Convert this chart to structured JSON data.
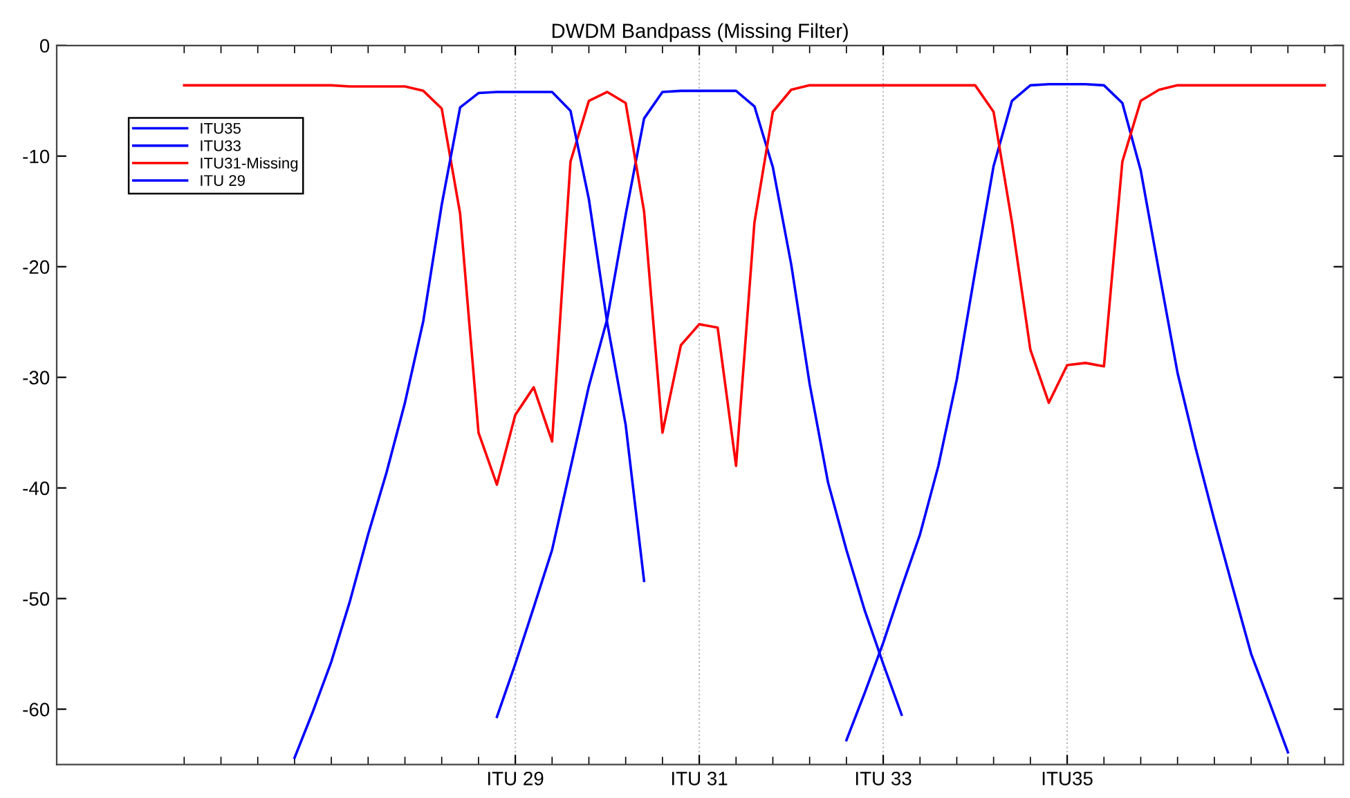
{
  "chart_data": {
    "type": "line",
    "title": "DWDM Bandpass (Missing Filter)",
    "categories": [
      null,
      null,
      null,
      null,
      null,
      null,
      null,
      null,
      null,
      null,
      null,
      null,
      null,
      null,
      null,
      null,
      null,
      null,
      "ITU 29",
      null,
      null,
      null,
      null,
      null,
      null,
      null,
      null,
      null,
      "ITU 31",
      null,
      null,
      null,
      null,
      null,
      null,
      null,
      null,
      null,
      "ITU 33",
      null,
      null,
      null,
      null,
      null,
      null,
      null,
      null,
      null,
      "ITU35",
      null,
      null,
      null,
      null,
      null,
      null,
      null,
      null,
      null,
      null,
      null,
      null,
      null,
      null
    ],
    "ylim": [
      -65,
      0
    ],
    "yticks": [
      0,
      -10,
      -20,
      -30,
      -40,
      -50,
      -60
    ],
    "grid": "x",
    "legend": "top left",
    "marker": "none",
    "line_style": "solid",
    "series": [
      {
        "name": "ITU35",
        "color": "#0000ff",
        "values": [
          null,
          null,
          null,
          null,
          null,
          null,
          null,
          null,
          null,
          null,
          null,
          null,
          null,
          null,
          null,
          null,
          null,
          null,
          null,
          null,
          null,
          null,
          null,
          null,
          null,
          null,
          null,
          null,
          null,
          null,
          null,
          null,
          null,
          null,
          null,
          null,
          -62.8,
          -58.5,
          -54,
          -49,
          -44.2,
          -38,
          -30.2,
          -20.4,
          -10.9,
          -5,
          -3.6,
          -3.5,
          -3.5,
          -3.5,
          -3.6,
          -5.2,
          -11.3,
          -20.5,
          -29.6,
          -36.5,
          -42.9,
          -49,
          -55,
          -59.4,
          -63.9,
          null,
          null
        ]
      },
      {
        "name": "ITU33",
        "color": "#0000ff",
        "values": [
          null,
          null,
          null,
          null,
          null,
          null,
          null,
          null,
          null,
          null,
          null,
          null,
          null,
          null,
          null,
          null,
          null,
          -60.7,
          -55.9,
          -50.8,
          -45.6,
          -38.2,
          -30.8,
          -24.7,
          -15.3,
          -6.6,
          -4.2,
          -4.1,
          -4.1,
          -4.1,
          -4.1,
          -5.5,
          -11,
          -19.8,
          -30.6,
          -39.5,
          -45.6,
          -51.1,
          -55.9,
          -60.5,
          null,
          null,
          null,
          null,
          null,
          null,
          null,
          null,
          null,
          null,
          null,
          null,
          null,
          null,
          null,
          null,
          null,
          null,
          null,
          null,
          null,
          null,
          null
        ]
      },
      {
        "name": "ITU31-Missing",
        "color": "#ff0000",
        "values": [
          -3.6,
          -3.6,
          -3.6,
          -3.6,
          -3.6,
          -3.6,
          -3.6,
          -3.6,
          -3.6,
          -3.7,
          -3.7,
          -3.7,
          -3.7,
          -4.1,
          -5.7,
          -15.2,
          -35,
          -39.7,
          -33.4,
          -30.9,
          -35.8,
          -10.5,
          -5,
          -4.2,
          -5.2,
          -15,
          -35,
          -27.1,
          -25.2,
          -25.5,
          -38,
          -16,
          -6,
          -4.0,
          -3.6,
          -3.6,
          -3.6,
          -3.6,
          -3.6,
          -3.6,
          -3.6,
          -3.6,
          -3.6,
          -3.6,
          -6.0,
          -16,
          -27.5,
          -32.3,
          -28.9,
          -28.7,
          -29,
          -10.5,
          -5,
          -4.0,
          -3.6,
          -3.6,
          -3.6,
          -3.6,
          -3.6,
          -3.6,
          -3.6,
          -3.6,
          -3.6
        ]
      },
      {
        "name": "ITU 29",
        "color": "#0000ff",
        "values": [
          null,
          null,
          null,
          null,
          null,
          null,
          -64.4,
          -60.2,
          -55.7,
          -50.3,
          -44.2,
          -38.6,
          -32.3,
          -24.9,
          -14.4,
          -5.6,
          -4.3,
          -4.2,
          -4.2,
          -4.2,
          -4.2,
          -5.9,
          -13.9,
          -25.1,
          -34.3,
          -48.4,
          null,
          null,
          null,
          null,
          null,
          null,
          null,
          null,
          null,
          null,
          null,
          null,
          null,
          null,
          null,
          null,
          null,
          null,
          null,
          null,
          null,
          null,
          null,
          null,
          null,
          null,
          null,
          null,
          null,
          null,
          null,
          null,
          null,
          null,
          null,
          null,
          null
        ]
      }
    ]
  }
}
